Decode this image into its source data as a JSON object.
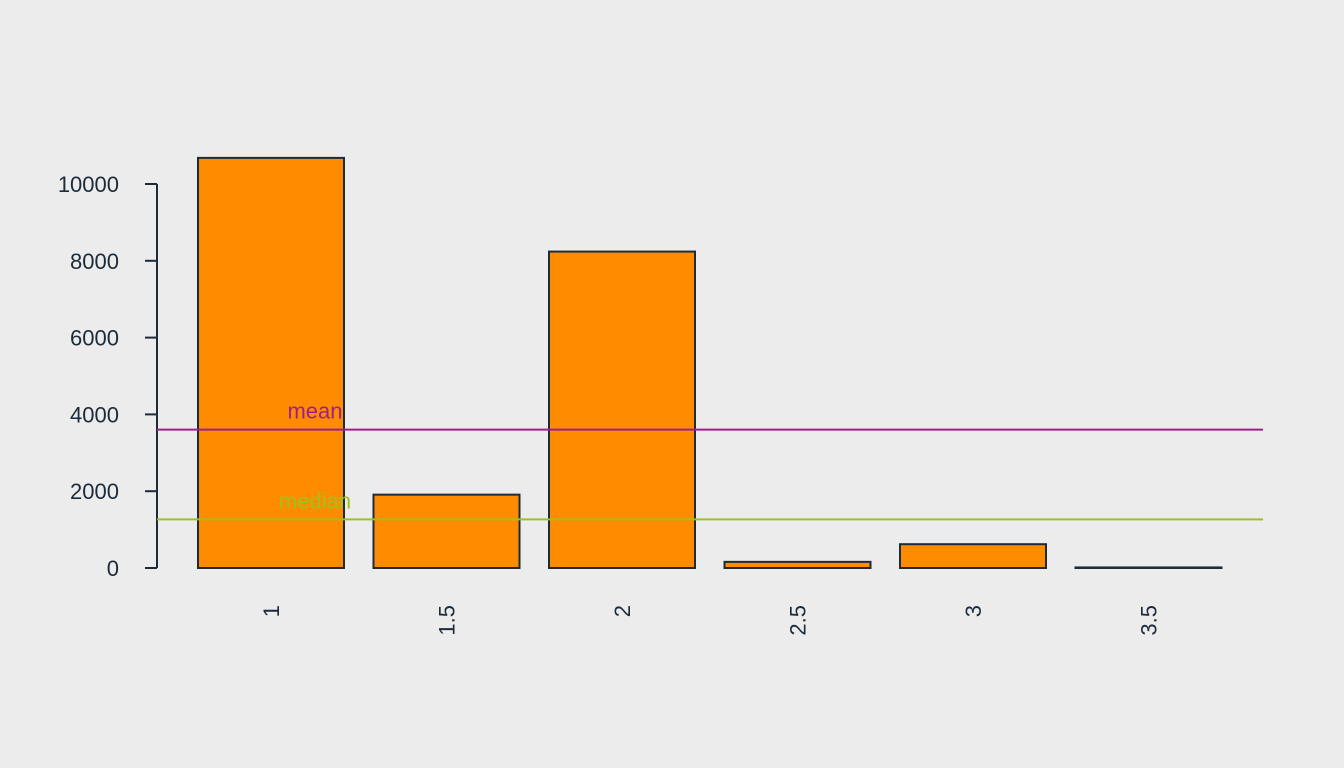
{
  "chart_data": {
    "type": "bar",
    "title": "",
    "xlabel": "",
    "ylabel": "",
    "categories": [
      "1",
      "1.5",
      "2",
      "2.5",
      "3",
      "3.5"
    ],
    "values": [
      10680,
      1910,
      8240,
      160,
      620,
      15
    ],
    "ylim": [
      0,
      10000
    ],
    "yticks": [
      0,
      2000,
      4000,
      6000,
      8000,
      10000
    ],
    "grid": false,
    "reference_lines": [
      {
        "label": "mean",
        "value": 3604,
        "color": "#9e1f8a"
      },
      {
        "label": "median",
        "value": 1265,
        "color": "#9ac31c"
      }
    ],
    "colors": {
      "bar_fill": "#ff8c00",
      "bar_stroke": "#1c2b3a",
      "axis": "#1c2b3a",
      "text": "#1c2b3a",
      "background": "#ececec"
    }
  }
}
